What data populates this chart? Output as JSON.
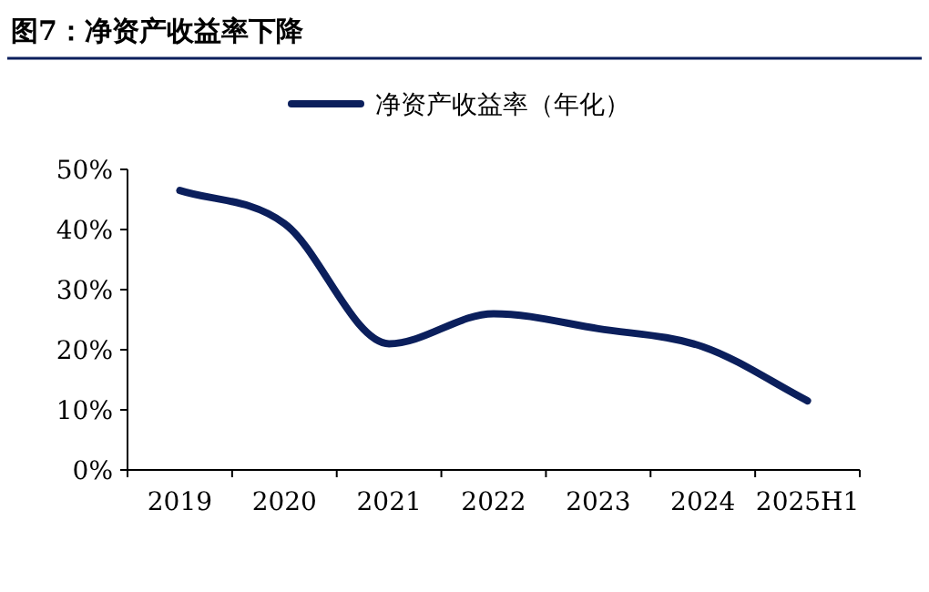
{
  "chart_data": {
    "type": "line",
    "title": "图7：净资产收益率下降",
    "categories": [
      "2019",
      "2020",
      "2021",
      "2022",
      "2023",
      "2024",
      "2025H1"
    ],
    "series": [
      {
        "name": "净资产收益率（年化）",
        "color": "#0b1f5c",
        "values": [
          46.5,
          41,
          21,
          26,
          23.5,
          20.5,
          11.5
        ]
      }
    ],
    "ylim": [
      0,
      50
    ],
    "yticks": [
      {
        "value": 0,
        "label": "0%"
      },
      {
        "value": 10,
        "label": "10%"
      },
      {
        "value": 20,
        "label": "20%"
      },
      {
        "value": 30,
        "label": "30%"
      },
      {
        "value": 40,
        "label": "40%"
      },
      {
        "value": 50,
        "label": "50%"
      }
    ],
    "legend": "top",
    "grid": false,
    "marker": "none",
    "line_style": "solid"
  }
}
